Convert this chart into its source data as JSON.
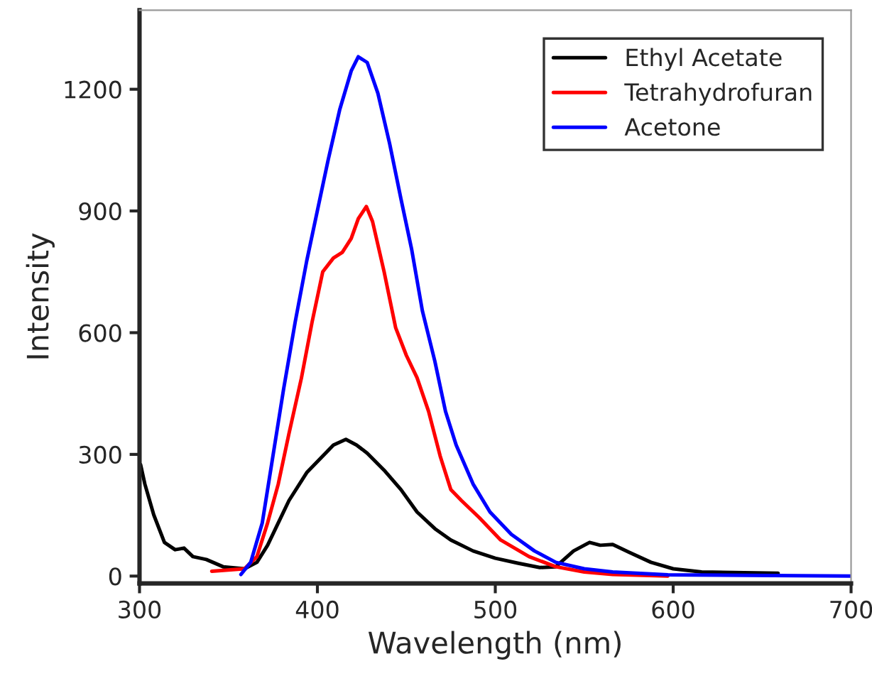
{
  "chart_data": {
    "type": "line",
    "xlabel": "Wavelength (nm)",
    "ylabel": "Intensity",
    "xlim": [
      300,
      700
    ],
    "ylim": [
      -18,
      1395
    ],
    "xticks": [
      300,
      400,
      500,
      600,
      700
    ],
    "yticks": [
      0,
      300,
      600,
      900,
      1200
    ],
    "legend": "top right",
    "grid": false,
    "marker": "none",
    "line_style": "solid",
    "series": [
      {
        "name": "Ethyl Acetate",
        "color": "#000000",
        "x": [
          300.6,
          303,
          308,
          314,
          320,
          325,
          330,
          337.5,
          347,
          359,
          366,
          372,
          378,
          384,
          394,
          403,
          409,
          416,
          422,
          428,
          437.5,
          447,
          456,
          466,
          475,
          487.5,
          500,
          512.5,
          525,
          534,
          544,
          553,
          559,
          566,
          575,
          587.5,
          600,
          616,
          659
        ],
        "values": [
          275,
          227,
          151,
          83,
          65,
          69,
          48,
          41,
          23,
          18,
          34,
          76,
          131,
          186,
          255,
          296,
          323,
          337,
          323,
          303,
          261,
          213,
          158,
          117,
          89,
          62,
          44,
          32,
          21,
          23,
          62,
          83,
          76,
          78,
          59,
          34,
          18,
          10,
          7
        ]
      },
      {
        "name": "Tetrahydrofuran",
        "color": "#ff0000",
        "x": [
          340.6,
          359,
          366,
          372,
          378,
          384,
          391,
          397,
          403,
          409,
          414,
          419,
          423,
          427.5,
          431,
          437.5,
          444,
          450,
          456,
          462.5,
          469,
          475,
          481,
          491,
          503,
          519,
          534,
          550,
          566,
          597
        ],
        "values": [
          12,
          18,
          48,
          131,
          227,
          351,
          488,
          626,
          750,
          784,
          798,
          832,
          881,
          911,
          874,
          750,
          612,
          544,
          489,
          406,
          296,
          213,
          186,
          144,
          89,
          48,
          23,
          10,
          4,
          0
        ]
      },
      {
        "name": "Acetone",
        "color": "#0000ff",
        "x": [
          357,
          362.5,
          369,
          375,
          381,
          387.5,
          394,
          400,
          406,
          412.5,
          419,
          423,
          428,
          434,
          440.6,
          447,
          453,
          459,
          466,
          472,
          478,
          487.5,
          497,
          509,
          522,
          534,
          550,
          566,
          597,
          700
        ],
        "values": [
          4,
          34,
          131,
          296,
          461,
          626,
          777,
          901,
          1025,
          1149,
          1245,
          1280,
          1266,
          1190,
          1066,
          929,
          805,
          654,
          530,
          406,
          323,
          227,
          158,
          103,
          62,
          34,
          18,
          10,
          3,
          0
        ]
      }
    ]
  }
}
